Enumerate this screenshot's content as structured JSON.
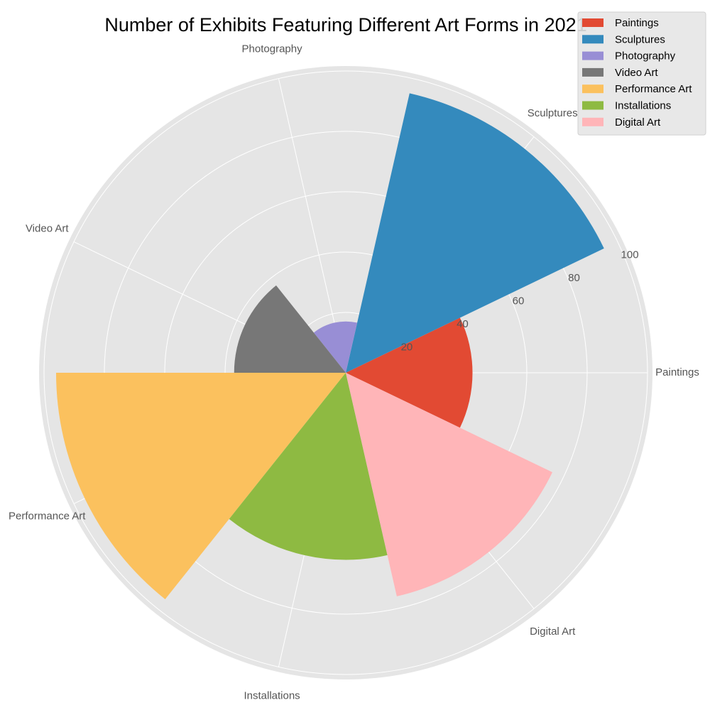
{
  "chart_data": {
    "type": "polar-area",
    "title": "Number of Exhibits Featuring Different Art Forms in 2021",
    "categories": [
      "Paintings",
      "Sculptures",
      "Photography",
      "Video Art",
      "Performance Art",
      "Installations",
      "Digital Art"
    ],
    "values": [
      42,
      95,
      17,
      37,
      96,
      62,
      76
    ],
    "colors": [
      "#E24A33",
      "#348ABD",
      "#988ED5",
      "#777777",
      "#FBC15E",
      "#8EBA42",
      "#FFB5B8"
    ],
    "radial_ticks": [
      20,
      40,
      60,
      80,
      100
    ],
    "rlim": [
      0,
      100
    ],
    "grid": true,
    "legend_position": "top-right"
  }
}
